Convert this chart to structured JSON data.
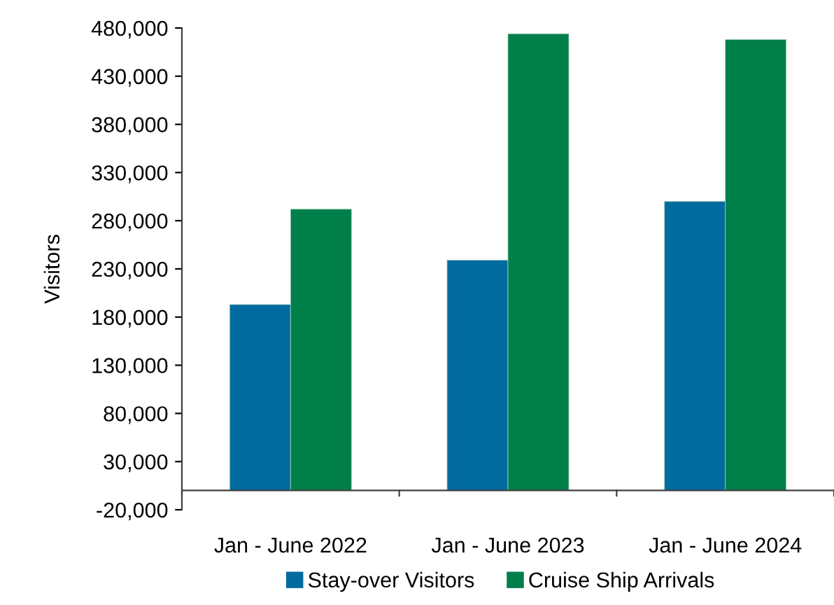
{
  "chart_data": {
    "type": "bar",
    "ylabel": "Visitors",
    "categories": [
      "Jan - June 2022",
      "Jan - June 2023",
      "Jan - June 2024"
    ],
    "series": [
      {
        "name": "Stay-over Visitors",
        "color": "#016ba0",
        "values": [
          193000,
          239000,
          300000
        ]
      },
      {
        "name": "Cruise Ship Arrivals",
        "color": "#017f4a",
        "values": [
          292000,
          474000,
          468000
        ]
      }
    ],
    "ylim": [
      -20000,
      480000
    ],
    "yticks": [
      {
        "value": -20000,
        "label": "-20,000"
      },
      {
        "value": 30000,
        "label": "30,000"
      },
      {
        "value": 80000,
        "label": "80,000"
      },
      {
        "value": 130000,
        "label": "130,000"
      },
      {
        "value": 180000,
        "label": "180,000"
      },
      {
        "value": 230000,
        "label": "230,000"
      },
      {
        "value": 280000,
        "label": "280,000"
      },
      {
        "value": 330000,
        "label": "330,000"
      },
      {
        "value": 380000,
        "label": "380,000"
      },
      {
        "value": 430000,
        "label": "430,000"
      },
      {
        "value": 480000,
        "label": "480,000"
      }
    ],
    "grid": false,
    "legend": "bottom"
  }
}
